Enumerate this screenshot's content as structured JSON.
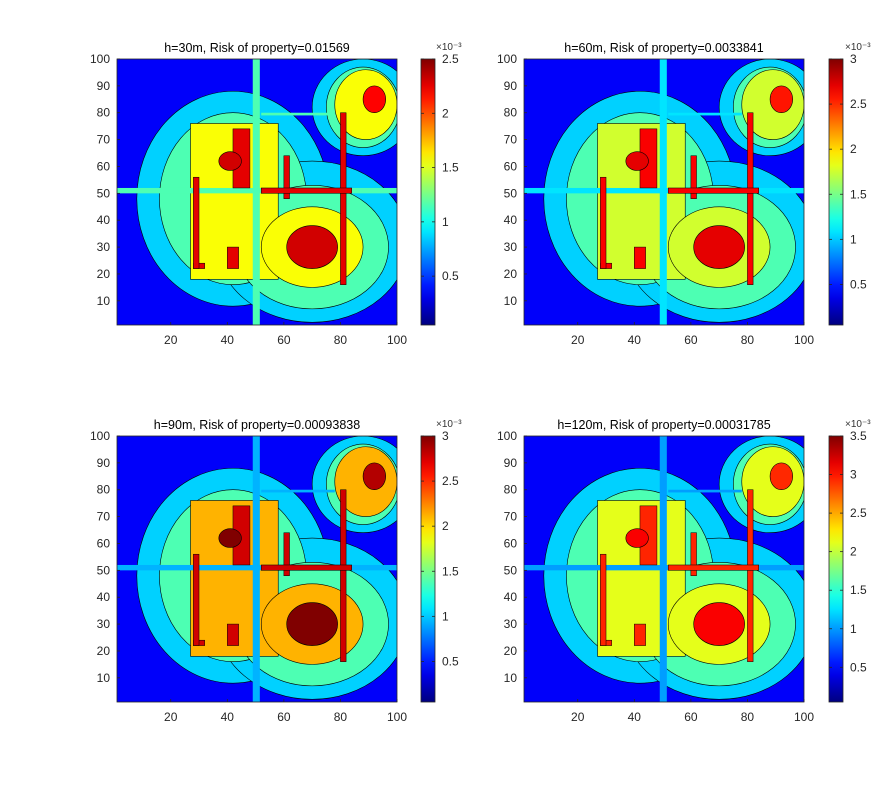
{
  "figure": {
    "colormap": "jet",
    "contour_line_color": "#000000"
  },
  "chart_data": [
    {
      "type": "heatmap",
      "title": "h=30m, Risk of property=0.01569",
      "x_ticks": [
        "20",
        "40",
        "60",
        "80",
        "100"
      ],
      "y_ticks": [
        "10",
        "20",
        "30",
        "40",
        "50",
        "60",
        "70",
        "80",
        "90",
        "100"
      ],
      "xlim": [
        1,
        100
      ],
      "ylim": [
        1,
        100
      ],
      "colorbar": {
        "exponent_label": "×10⁻³",
        "ticks": [
          "0.5",
          "1",
          "1.5",
          "2",
          "2.5"
        ],
        "range": [
          0.05,
          2.5
        ]
      },
      "peak": 2.5,
      "zone_levels": {
        "park": 0.45,
        "bg_ring": 1.0,
        "red_blobs": 0.92,
        "roads": 0.72,
        "building_frame": 0.9,
        "fill": 0.62
      }
    },
    {
      "type": "heatmap",
      "title": "h=60m, Risk of property=0.0033841",
      "x_ticks": [
        "20",
        "40",
        "60",
        "80",
        "100"
      ],
      "y_ticks": [
        "10",
        "20",
        "30",
        "40",
        "50",
        "60",
        "70",
        "80",
        "90",
        "100"
      ],
      "xlim": [
        1,
        100
      ],
      "ylim": [
        1,
        100
      ],
      "colorbar": {
        "exponent_label": "×10⁻³",
        "ticks": [
          "0.5",
          "1",
          "1.5",
          "2",
          "2.5",
          "3"
        ],
        "range": [
          0.05,
          3
        ]
      },
      "peak": 3,
      "zone_levels": {
        "park": 0.35,
        "bg_ring": 0.95,
        "red_blobs": 0.9,
        "roads": 0.66,
        "building_frame": 0.88,
        "fill": 0.58
      }
    },
    {
      "type": "heatmap",
      "title": "h=90m, Risk of property=0.00093838",
      "x_ticks": [
        "20",
        "40",
        "60",
        "80",
        "100"
      ],
      "y_ticks": [
        "10",
        "20",
        "30",
        "40",
        "50",
        "60",
        "70",
        "80",
        "90",
        "100"
      ],
      "xlim": [
        1,
        100
      ],
      "ylim": [
        1,
        100
      ],
      "colorbar": {
        "exponent_label": "×10⁻³",
        "ticks": [
          "0.5",
          "1",
          "1.5",
          "2",
          "2.5",
          "3"
        ],
        "range": [
          0.05,
          3
        ]
      },
      "peak": 3,
      "zone_levels": {
        "park": 0.3,
        "bg_ring": 1.0,
        "red_blobs": 1.0,
        "roads": 0.7,
        "building_frame": 0.92,
        "fill": 0.7
      }
    },
    {
      "type": "heatmap",
      "title": "h=120m, Risk of property=0.00031785",
      "x_ticks": [
        "20",
        "40",
        "60",
        "80",
        "100"
      ],
      "y_ticks": [
        "10",
        "20",
        "30",
        "40",
        "50",
        "60",
        "70",
        "80",
        "90",
        "100"
      ],
      "xlim": [
        1,
        100
      ],
      "ylim": [
        1,
        100
      ],
      "colorbar": {
        "exponent_label": "×10⁻³",
        "ticks": [
          "0.5",
          "1",
          "1.5",
          "2",
          "2.5",
          "3",
          "3.5"
        ],
        "range": [
          0.05,
          3.5
        ]
      },
      "peak": 3.5,
      "zone_levels": {
        "park": 0.28,
        "bg_ring": 0.92,
        "red_blobs": 0.88,
        "roads": 0.62,
        "building_frame": 0.84,
        "fill": 0.6
      }
    }
  ]
}
